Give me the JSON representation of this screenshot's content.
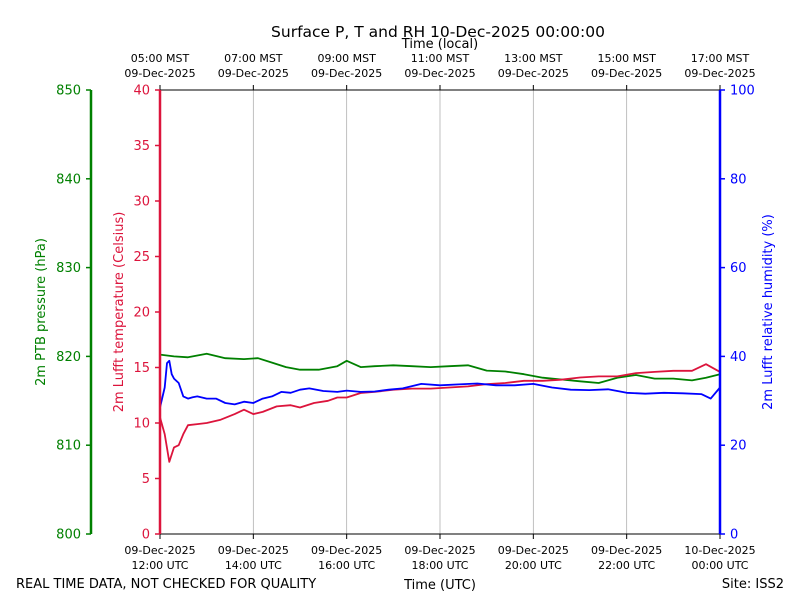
{
  "chart_data": {
    "type": "line",
    "title": "Surface P, T and RH 10-Dec-2025 00:00:00",
    "top_axis_label": "Time (local)",
    "xlabel": "Time (UTC)",
    "footer_left": "REAL TIME DATA, NOT CHECKED FOR QUALITY",
    "footer_right": "Site: ISS2",
    "xlim": [
      12,
      24
    ],
    "grid": "vertical",
    "local_ticks": [
      {
        "x": 12,
        "time": "05:00 MST",
        "date": "09-Dec-2025"
      },
      {
        "x": 14,
        "time": "07:00 MST",
        "date": "09-Dec-2025"
      },
      {
        "x": 16,
        "time": "09:00 MST",
        "date": "09-Dec-2025"
      },
      {
        "x": 18,
        "time": "11:00 MST",
        "date": "09-Dec-2025"
      },
      {
        "x": 20,
        "time": "13:00 MST",
        "date": "09-Dec-2025"
      },
      {
        "x": 22,
        "time": "15:00 MST",
        "date": "09-Dec-2025"
      },
      {
        "x": 24,
        "time": "17:00 MST",
        "date": "09-Dec-2025"
      }
    ],
    "utc_ticks": [
      {
        "x": 12,
        "date": "09-Dec-2025",
        "time": "12:00 UTC"
      },
      {
        "x": 14,
        "date": "09-Dec-2025",
        "time": "14:00 UTC"
      },
      {
        "x": 16,
        "date": "09-Dec-2025",
        "time": "16:00 UTC"
      },
      {
        "x": 18,
        "date": "09-Dec-2025",
        "time": "18:00 UTC"
      },
      {
        "x": 20,
        "date": "09-Dec-2025",
        "time": "20:00 UTC"
      },
      {
        "x": 22,
        "date": "09-Dec-2025",
        "time": "22:00 UTC"
      },
      {
        "x": 24,
        "date": "10-Dec-2025",
        "time": "00:00 UTC"
      }
    ],
    "axes": {
      "pressure": {
        "label": "2m PTB pressure (hPa)",
        "color": "#008000",
        "ylim": [
          800,
          850
        ],
        "ticks": [
          800,
          810,
          820,
          830,
          840,
          850
        ]
      },
      "temperature": {
        "label": "2m Lufft temperature (Celsius)",
        "color": "#dc143c",
        "ylim": [
          0,
          40
        ],
        "ticks": [
          0,
          5,
          10,
          15,
          20,
          25,
          30,
          35,
          40
        ]
      },
      "humidity": {
        "label": "2m Lufft relative humidity (%)",
        "color": "#0000ff",
        "ylim": [
          0,
          100
        ],
        "ticks": [
          0,
          20,
          40,
          60,
          80,
          100
        ]
      }
    },
    "series": [
      {
        "axis": "pressure",
        "color": "#008000",
        "x": [
          12.0,
          12.3,
          12.6,
          13.0,
          13.4,
          13.8,
          14.1,
          14.4,
          14.7,
          15.0,
          15.4,
          15.8,
          16.0,
          16.3,
          16.6,
          17.0,
          17.4,
          17.8,
          18.2,
          18.6,
          19.0,
          19.4,
          19.8,
          20.2,
          20.6,
          21.0,
          21.4,
          21.8,
          22.2,
          22.6,
          23.0,
          23.4,
          23.7,
          24.0
        ],
        "y": [
          820.2,
          820.0,
          819.9,
          820.3,
          819.8,
          819.7,
          819.8,
          819.3,
          818.8,
          818.5,
          818.5,
          818.9,
          819.5,
          818.8,
          818.9,
          819.0,
          818.9,
          818.8,
          818.9,
          819.0,
          818.4,
          818.3,
          818.0,
          817.6,
          817.4,
          817.2,
          817.0,
          817.6,
          817.9,
          817.5,
          817.5,
          817.3,
          817.6,
          818.0
        ]
      },
      {
        "axis": "temperature",
        "color": "#dc143c",
        "x": [
          12.0,
          12.1,
          12.2,
          12.3,
          12.4,
          12.5,
          12.6,
          12.8,
          13.0,
          13.3,
          13.6,
          13.8,
          14.0,
          14.2,
          14.5,
          14.8,
          15.0,
          15.3,
          15.6,
          15.8,
          16.0,
          16.3,
          16.6,
          17.0,
          17.4,
          17.8,
          18.2,
          18.6,
          19.0,
          19.4,
          19.8,
          20.2,
          20.6,
          21.0,
          21.4,
          21.8,
          22.2,
          22.6,
          23.0,
          23.4,
          23.7,
          24.0
        ],
        "y": [
          10.5,
          9.0,
          6.5,
          7.8,
          8.0,
          9.0,
          9.8,
          9.9,
          10.0,
          10.3,
          10.8,
          11.2,
          10.8,
          11.0,
          11.5,
          11.6,
          11.4,
          11.8,
          12.0,
          12.3,
          12.3,
          12.7,
          12.8,
          13.0,
          13.1,
          13.1,
          13.2,
          13.3,
          13.5,
          13.6,
          13.8,
          13.8,
          13.9,
          14.1,
          14.2,
          14.2,
          14.5,
          14.6,
          14.7,
          14.7,
          15.3,
          14.6
        ]
      },
      {
        "axis": "humidity",
        "color": "#0000ff",
        "x": [
          12.0,
          12.1,
          12.15,
          12.2,
          12.25,
          12.3,
          12.4,
          12.5,
          12.6,
          12.7,
          12.8,
          13.0,
          13.2,
          13.4,
          13.6,
          13.8,
          14.0,
          14.2,
          14.4,
          14.6,
          14.8,
          15.0,
          15.2,
          15.5,
          15.8,
          16.0,
          16.3,
          16.6,
          16.9,
          17.2,
          17.6,
          18.0,
          18.4,
          18.8,
          19.2,
          19.6,
          20.0,
          20.4,
          20.8,
          21.2,
          21.6,
          22.0,
          22.4,
          22.8,
          23.2,
          23.6,
          23.8,
          24.0
        ],
        "y": [
          28.5,
          33.0,
          38.5,
          39.0,
          36.0,
          35.0,
          34.0,
          31.0,
          30.5,
          30.8,
          31.0,
          30.5,
          30.5,
          29.5,
          29.2,
          29.8,
          29.5,
          30.5,
          31.0,
          32.0,
          31.8,
          32.5,
          32.8,
          32.2,
          32.0,
          32.3,
          32.0,
          32.1,
          32.5,
          32.8,
          33.8,
          33.5,
          33.7,
          33.9,
          33.5,
          33.5,
          33.8,
          33.0,
          32.5,
          32.4,
          32.6,
          31.8,
          31.6,
          31.8,
          31.7,
          31.5,
          30.5,
          33.0
        ]
      }
    ]
  }
}
